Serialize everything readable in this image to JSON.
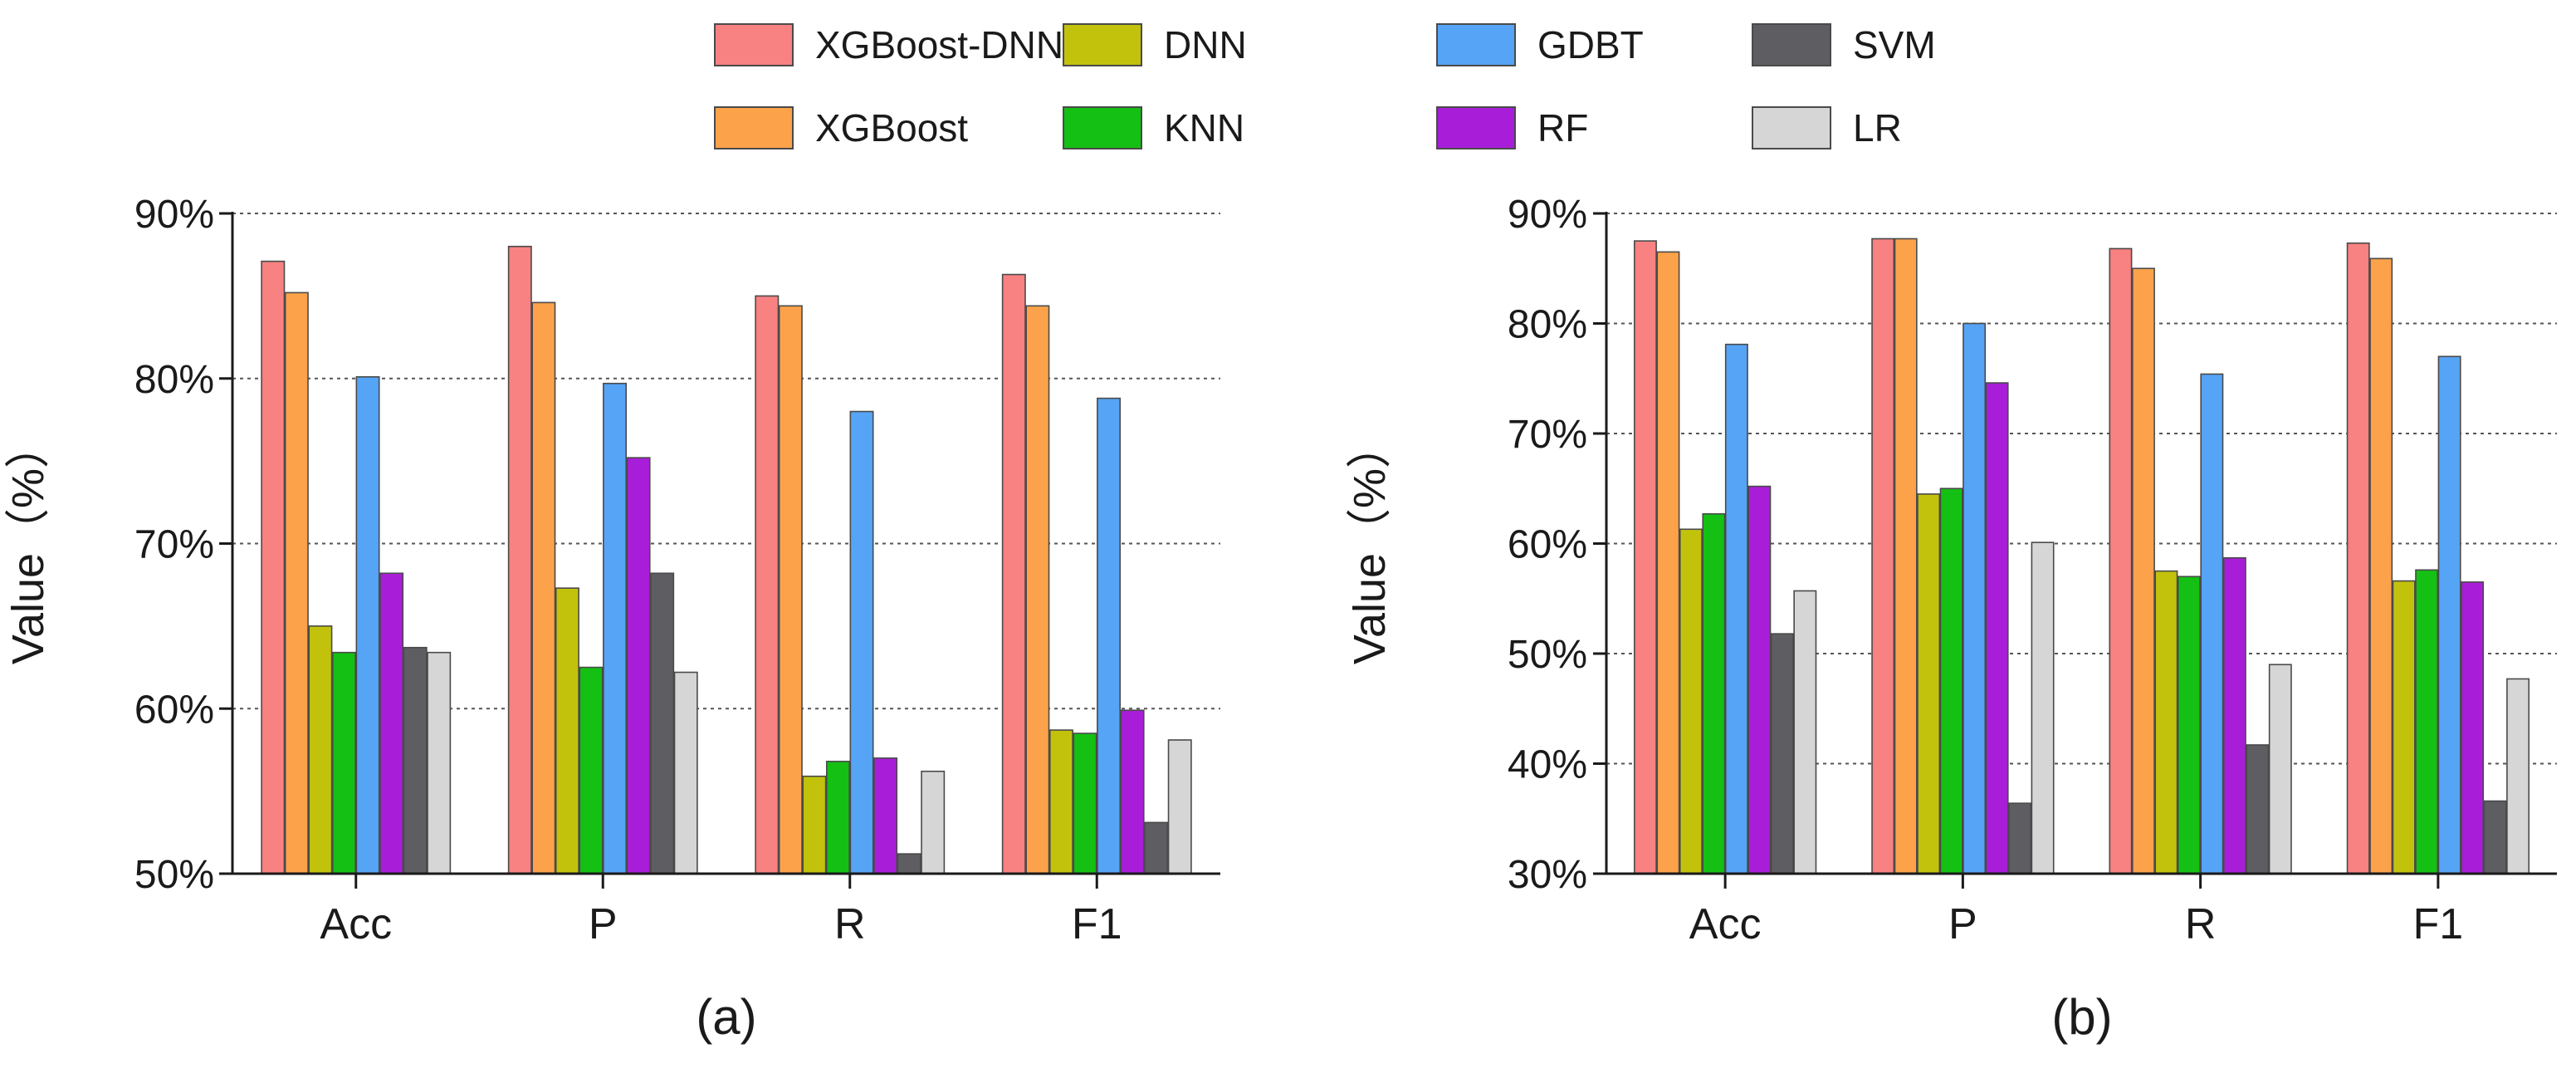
{
  "legend": {
    "items": [
      {
        "name": "XGBoost-DNN",
        "color": "#f88181"
      },
      {
        "name": "XGBoost",
        "color": "#fba24a"
      },
      {
        "name": "DNN",
        "color": "#c2c20d"
      },
      {
        "name": "KNN",
        "color": "#14c014"
      },
      {
        "name": "GDBT",
        "color": "#56a4f6"
      },
      {
        "name": "RF",
        "color": "#a81ed8"
      },
      {
        "name": "SVM",
        "color": "#5e5e62"
      },
      {
        "name": "LR",
        "color": "#d6d6d6"
      }
    ]
  },
  "chart_data": [
    {
      "type": "bar",
      "panel_label": "(a)",
      "title": "",
      "xlabel": "",
      "ylabel": "Value（%）",
      "ylim": [
        50,
        90
      ],
      "yticks": [
        50,
        60,
        70,
        80,
        90
      ],
      "ytick_labels": [
        "50%",
        "60%",
        "70%",
        "80%",
        "90%"
      ],
      "grid": "horizontal dotted",
      "legend_position": "top",
      "categories": [
        "Acc",
        "P",
        "R",
        "F1"
      ],
      "series": [
        {
          "name": "XGBoost-DNN",
          "values": [
            87.1,
            88.0,
            85.0,
            86.3
          ]
        },
        {
          "name": "XGBoost",
          "values": [
            85.2,
            84.6,
            84.4,
            84.4
          ]
        },
        {
          "name": "DNN",
          "values": [
            65.0,
            67.3,
            55.9,
            58.7
          ]
        },
        {
          "name": "KNN",
          "values": [
            63.4,
            62.5,
            56.8,
            58.5
          ]
        },
        {
          "name": "GDBT",
          "values": [
            80.1,
            79.7,
            78.0,
            78.8
          ]
        },
        {
          "name": "RF",
          "values": [
            68.2,
            75.2,
            57.0,
            59.9
          ]
        },
        {
          "name": "SVM",
          "values": [
            63.7,
            68.2,
            51.2,
            53.1
          ]
        },
        {
          "name": "LR",
          "values": [
            63.4,
            62.2,
            56.2,
            58.1
          ]
        }
      ]
    },
    {
      "type": "bar",
      "panel_label": "(b)",
      "title": "",
      "xlabel": "",
      "ylabel": "Value（%）",
      "ylim": [
        30,
        90
      ],
      "yticks": [
        30,
        40,
        50,
        60,
        70,
        80,
        90
      ],
      "ytick_labels": [
        "30%",
        "40%",
        "50%",
        "60%",
        "70%",
        "80%",
        "90%"
      ],
      "grid": "horizontal dotted",
      "legend_position": "top",
      "categories": [
        "Acc",
        "P",
        "R",
        "F1"
      ],
      "series": [
        {
          "name": "XGBoost-DNN",
          "values": [
            87.5,
            87.7,
            86.8,
            87.3
          ]
        },
        {
          "name": "XGBoost",
          "values": [
            86.5,
            87.7,
            85.0,
            85.9
          ]
        },
        {
          "name": "DNN",
          "values": [
            61.3,
            64.5,
            57.5,
            56.6
          ]
        },
        {
          "name": "KNN",
          "values": [
            62.7,
            65.0,
            57.0,
            57.6
          ]
        },
        {
          "name": "GDBT",
          "values": [
            78.1,
            80.0,
            75.4,
            77.0
          ]
        },
        {
          "name": "RF",
          "values": [
            65.2,
            74.6,
            58.7,
            56.5
          ]
        },
        {
          "name": "SVM",
          "values": [
            51.8,
            36.4,
            41.7,
            36.6
          ]
        },
        {
          "name": "LR",
          "values": [
            55.7,
            60.1,
            49.0,
            47.7
          ]
        }
      ]
    }
  ]
}
